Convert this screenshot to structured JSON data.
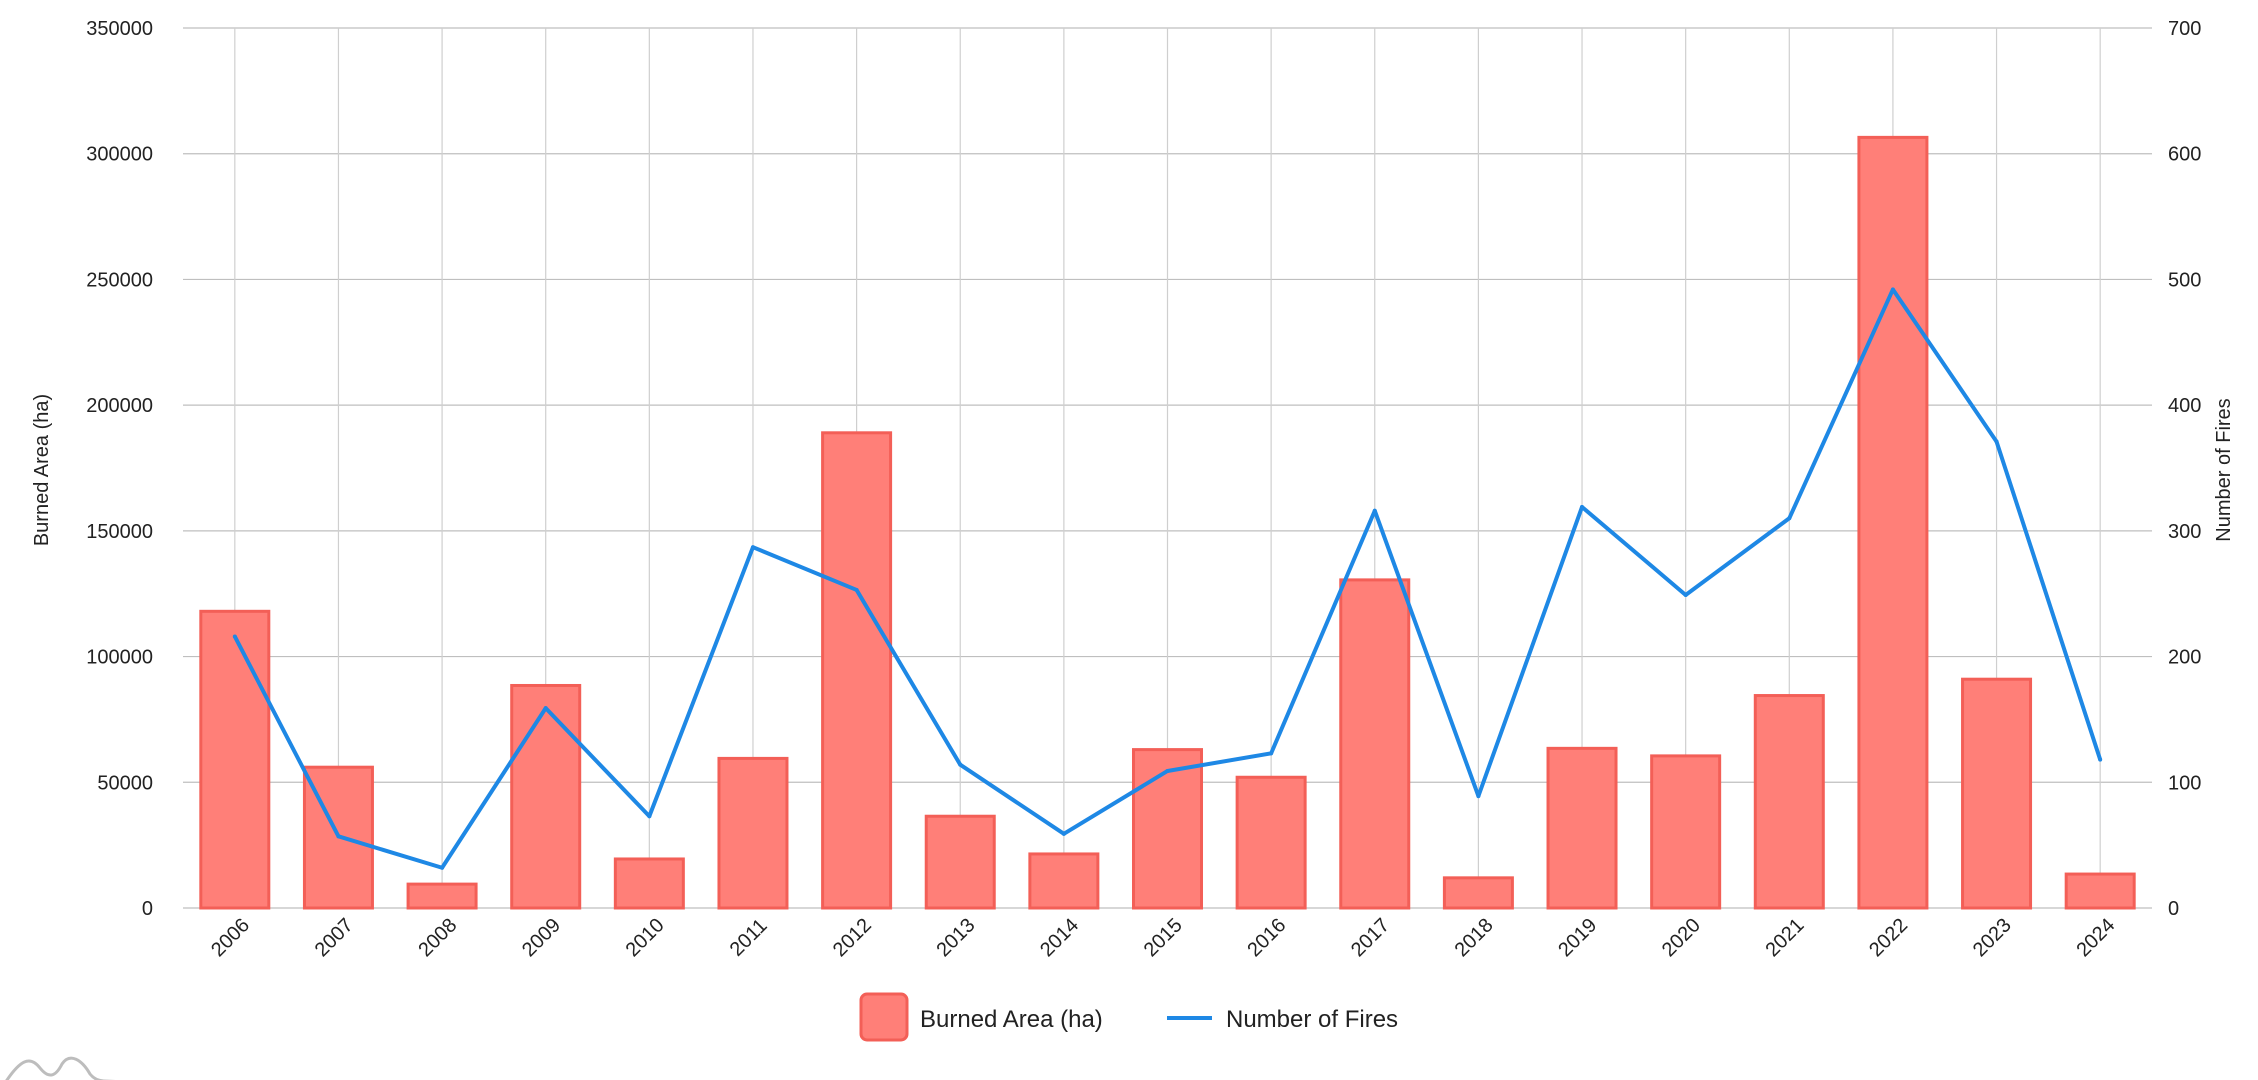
{
  "chart_data": {
    "type": "bar",
    "categories": [
      "2006",
      "2007",
      "2008",
      "2009",
      "2010",
      "2011",
      "2012",
      "2013",
      "2014",
      "2015",
      "2016",
      "2017",
      "2018",
      "2019",
      "2020",
      "2021",
      "2022",
      "2023",
      "2024"
    ],
    "series": [
      {
        "name": "Burned Area (ha)",
        "type": "bar",
        "axis": "left",
        "color": "#ff7f78",
        "values": [
          118000,
          56000,
          9500,
          88500,
          19500,
          59500,
          189000,
          36500,
          21500,
          63000,
          52000,
          130500,
          12000,
          63500,
          60500,
          84500,
          306500,
          91000,
          13500
        ]
      },
      {
        "name": "Number of Fires",
        "type": "line",
        "axis": "right",
        "color": "#1e88e5",
        "values": [
          216,
          57,
          32,
          159,
          73,
          287,
          253,
          114,
          59,
          109,
          123,
          316,
          89,
          319,
          249,
          310,
          492,
          371,
          118
        ]
      }
    ],
    "ylabel": "Burned Area (ha)",
    "ylim": [
      0,
      350000
    ],
    "yticks": [
      "0",
      "50000",
      "100000",
      "150000",
      "200000",
      "250000",
      "300000",
      "350000"
    ],
    "y2label": "Number of Fires",
    "y2lim": [
      0,
      700
    ],
    "y2ticks": [
      "0",
      "100",
      "200",
      "300",
      "400",
      "500",
      "600",
      "700"
    ],
    "grid": true,
    "legend": "bottom-center"
  }
}
